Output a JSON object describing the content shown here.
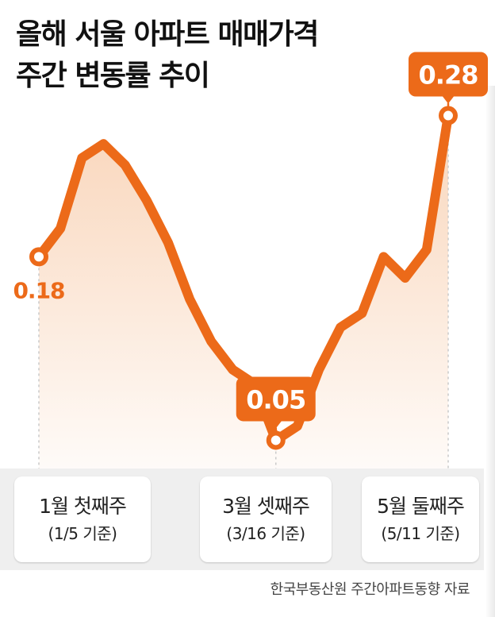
{
  "title": {
    "line1": "올해 서울 아파트 매매가격",
    "line2": "주간 변동률 추이"
  },
  "colors": {
    "line": "#ec6a19",
    "fill_top": "#f7c8a4",
    "callout_bg": "#ec6a19",
    "label_text": "#ec6a19",
    "band": "#efefef"
  },
  "chart_data": {
    "type": "line",
    "series": [
      {
        "values": [
          0.18,
          0.2,
          0.25,
          0.26,
          0.245,
          0.22,
          0.19,
          0.15,
          0.12,
          0.1,
          0.09,
          0.05,
          0.06,
          0.1,
          0.13,
          0.14,
          0.18,
          0.165,
          0.185,
          0.28
        ]
      }
    ],
    "ylim": [
      0.03,
      0.3
    ],
    "data_labels": [
      {
        "index": 0,
        "text": "0.18",
        "style": "plain"
      },
      {
        "index": 11,
        "text": "0.05",
        "style": "callout"
      },
      {
        "index": 19,
        "text": "0.28",
        "style": "callout"
      }
    ],
    "x_labels": [
      {
        "index": 0,
        "main": "1월 첫째주",
        "sub": "(1/5 기준)"
      },
      {
        "index": 11,
        "main": "3월 셋째주",
        "sub": "(3/16 기준)"
      },
      {
        "index": 19,
        "main": "5월 둘째주",
        "sub": "(5/11 기준)"
      }
    ],
    "grid": false,
    "legend": "none"
  },
  "source": "한국부동산원 주간아파트동향 자료"
}
